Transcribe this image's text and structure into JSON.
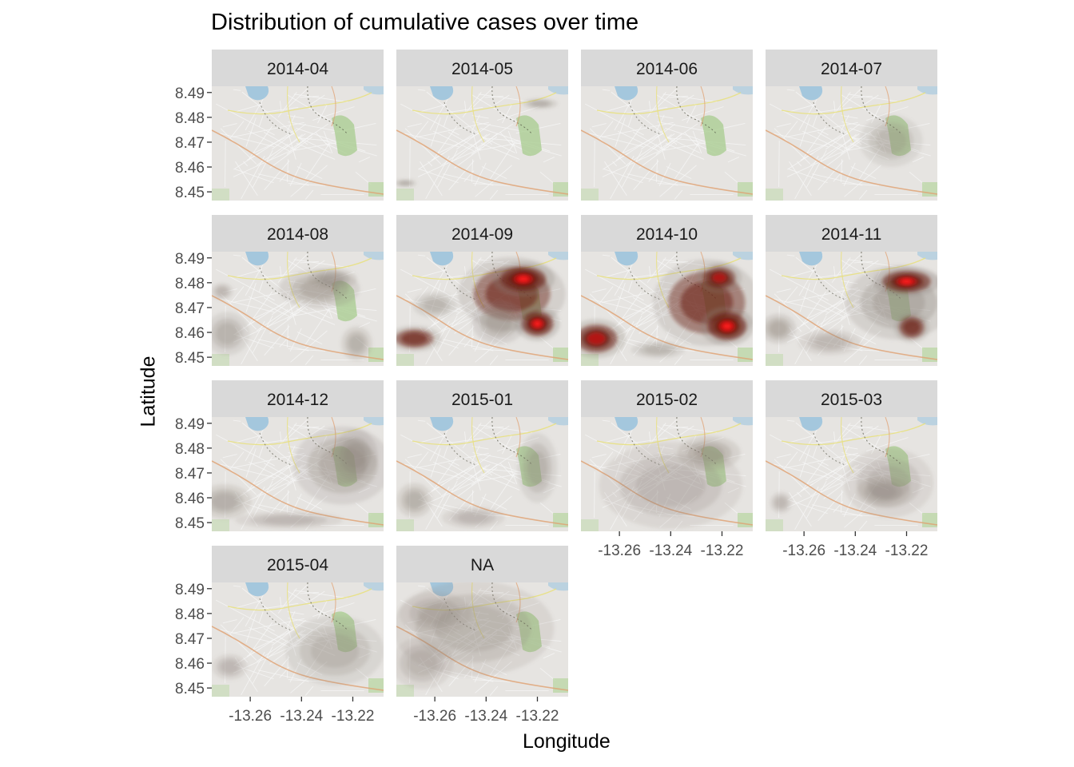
{
  "chart_data": {
    "type": "heatmap",
    "subtype": "faceted 2D kernel density over street map",
    "title": "Distribution of cumulative cases over time",
    "xlabel": "Longitude",
    "ylabel": "Latitude",
    "xlim": [
      -13.275,
      -13.208
    ],
    "ylim": [
      8.4465,
      8.4925
    ],
    "x_ticks": [
      -13.26,
      -13.24,
      -13.22
    ],
    "x_tick_labels": [
      "-13.26",
      "-13.24",
      "-13.22"
    ],
    "y_ticks": [
      8.45,
      8.46,
      8.47,
      8.48,
      8.49
    ],
    "y_tick_labels": [
      "8.45",
      "8.46",
      "8.47",
      "8.48",
      "8.49"
    ],
    "facet_layout": {
      "columns": 4,
      "rows": 4
    },
    "grid": false,
    "colors": {
      "strip_background": "#d9d9d9",
      "low_density": "#8c8279",
      "mid_density": "#6b1e12",
      "high_density": "#c0120c",
      "peak_density": "#ff2020"
    },
    "facets": [
      {
        "label": "2014-04",
        "hotspots": []
      },
      {
        "label": "2014-05",
        "hotspots": [
          {
            "lon": -13.219,
            "lat": 8.4855,
            "sx": 0.004,
            "sy": 0.0012,
            "level": 0.3
          },
          {
            "lon": -13.2715,
            "lat": 8.4535,
            "sx": 0.0025,
            "sy": 0.0009,
            "level": 0.3
          }
        ]
      },
      {
        "label": "2014-06",
        "hotspots": []
      },
      {
        "label": "2014-07",
        "hotspots": [
          {
            "lon": -13.226,
            "lat": 8.4705,
            "sx": 0.007,
            "sy": 0.006,
            "level": 0.14
          }
        ]
      },
      {
        "label": "2014-08",
        "hotspots": [
          {
            "lon": -13.233,
            "lat": 8.4775,
            "sx": 0.009,
            "sy": 0.0045,
            "level": 0.35
          },
          {
            "lon": -13.228,
            "lat": 8.4815,
            "sx": 0.0055,
            "sy": 0.0025,
            "level": 0.3
          },
          {
            "lon": -13.271,
            "lat": 8.4765,
            "sx": 0.0025,
            "sy": 0.002,
            "level": 0.15
          },
          {
            "lon": -13.269,
            "lat": 8.4595,
            "sx": 0.005,
            "sy": 0.005,
            "level": 0.22
          },
          {
            "lon": -13.2185,
            "lat": 8.4555,
            "sx": 0.0035,
            "sy": 0.004,
            "level": 0.25
          }
        ]
      },
      {
        "label": "2014-09",
        "hotspots": [
          {
            "lon": -13.23,
            "lat": 8.4755,
            "sx": 0.012,
            "sy": 0.0085,
            "level": 0.45
          },
          {
            "lon": -13.2255,
            "lat": 8.4815,
            "sx": 0.007,
            "sy": 0.004,
            "level": 0.78
          },
          {
            "lon": -13.22,
            "lat": 8.4635,
            "sx": 0.005,
            "sy": 0.004,
            "level": 0.78
          },
          {
            "lon": -13.268,
            "lat": 8.4575,
            "sx": 0.006,
            "sy": 0.003,
            "level": 0.55
          },
          {
            "lon": -13.235,
            "lat": 8.464,
            "sx": 0.006,
            "sy": 0.005,
            "level": 0.32
          },
          {
            "lon": -13.26,
            "lat": 8.471,
            "sx": 0.005,
            "sy": 0.003,
            "level": 0.18
          }
        ]
      },
      {
        "label": "2014-10",
        "hotspots": [
          {
            "lon": -13.226,
            "lat": 8.472,
            "sx": 0.012,
            "sy": 0.01,
            "level": 0.45
          },
          {
            "lon": -13.218,
            "lat": 8.4625,
            "sx": 0.006,
            "sy": 0.0045,
            "level": 0.85
          },
          {
            "lon": -13.221,
            "lat": 8.482,
            "sx": 0.005,
            "sy": 0.0035,
            "level": 0.6
          },
          {
            "lon": -13.269,
            "lat": 8.4575,
            "sx": 0.0065,
            "sy": 0.0045,
            "level": 0.7
          },
          {
            "lon": -13.245,
            "lat": 8.453,
            "sx": 0.006,
            "sy": 0.002,
            "level": 0.18
          }
        ]
      },
      {
        "label": "2014-11",
        "hotspots": [
          {
            "lon": -13.223,
            "lat": 8.472,
            "sx": 0.012,
            "sy": 0.0085,
            "level": 0.4
          },
          {
            "lon": -13.22,
            "lat": 8.4805,
            "sx": 0.0075,
            "sy": 0.0035,
            "level": 0.72
          },
          {
            "lon": -13.218,
            "lat": 8.462,
            "sx": 0.004,
            "sy": 0.0035,
            "level": 0.55
          },
          {
            "lon": -13.27,
            "lat": 8.4615,
            "sx": 0.004,
            "sy": 0.0035,
            "level": 0.35
          },
          {
            "lon": -13.25,
            "lat": 8.456,
            "sx": 0.007,
            "sy": 0.003,
            "level": 0.15
          }
        ]
      },
      {
        "label": "2014-12",
        "hotspots": [
          {
            "lon": -13.224,
            "lat": 8.473,
            "sx": 0.011,
            "sy": 0.009,
            "level": 0.32
          },
          {
            "lon": -13.219,
            "lat": 8.477,
            "sx": 0.005,
            "sy": 0.006,
            "level": 0.4
          },
          {
            "lon": -13.27,
            "lat": 8.4585,
            "sx": 0.006,
            "sy": 0.004,
            "level": 0.3
          },
          {
            "lon": -13.245,
            "lat": 8.451,
            "sx": 0.012,
            "sy": 0.002,
            "level": 0.12
          }
        ]
      },
      {
        "label": "2015-01",
        "hotspots": [
          {
            "lon": -13.22,
            "lat": 8.472,
            "sx": 0.0045,
            "sy": 0.008,
            "level": 0.22
          },
          {
            "lon": -13.268,
            "lat": 8.459,
            "sx": 0.004,
            "sy": 0.004,
            "level": 0.25
          },
          {
            "lon": -13.245,
            "lat": 8.452,
            "sx": 0.007,
            "sy": 0.0025,
            "level": 0.12
          }
        ]
      },
      {
        "label": "2015-02",
        "hotspots": [
          {
            "lon": -13.225,
            "lat": 8.478,
            "sx": 0.007,
            "sy": 0.004,
            "level": 0.38
          },
          {
            "lon": -13.24,
            "lat": 8.465,
            "sx": 0.016,
            "sy": 0.01,
            "level": 0.12
          }
        ]
      },
      {
        "label": "2015-03",
        "hotspots": [
          {
            "lon": -13.229,
            "lat": 8.4625,
            "sx": 0.006,
            "sy": 0.0035,
            "level": 0.3
          },
          {
            "lon": -13.227,
            "lat": 8.466,
            "sx": 0.01,
            "sy": 0.008,
            "level": 0.12
          },
          {
            "lon": -13.269,
            "lat": 8.458,
            "sx": 0.0025,
            "sy": 0.0025,
            "level": 0.15
          }
        ]
      },
      {
        "label": "2015-04",
        "hotspots": [
          {
            "lon": -13.227,
            "lat": 8.465,
            "sx": 0.011,
            "sy": 0.008,
            "level": 0.18
          },
          {
            "lon": -13.268,
            "lat": 8.4585,
            "sx": 0.004,
            "sy": 0.003,
            "level": 0.12
          }
        ]
      },
      {
        "label": "NA",
        "hotspots": [
          {
            "lon": -13.245,
            "lat": 8.474,
            "sx": 0.018,
            "sy": 0.011,
            "level": 0.2
          },
          {
            "lon": -13.26,
            "lat": 8.48,
            "sx": 0.008,
            "sy": 0.005,
            "level": 0.16
          },
          {
            "lon": -13.265,
            "lat": 8.46,
            "sx": 0.007,
            "sy": 0.006,
            "level": 0.16
          }
        ]
      }
    ]
  }
}
